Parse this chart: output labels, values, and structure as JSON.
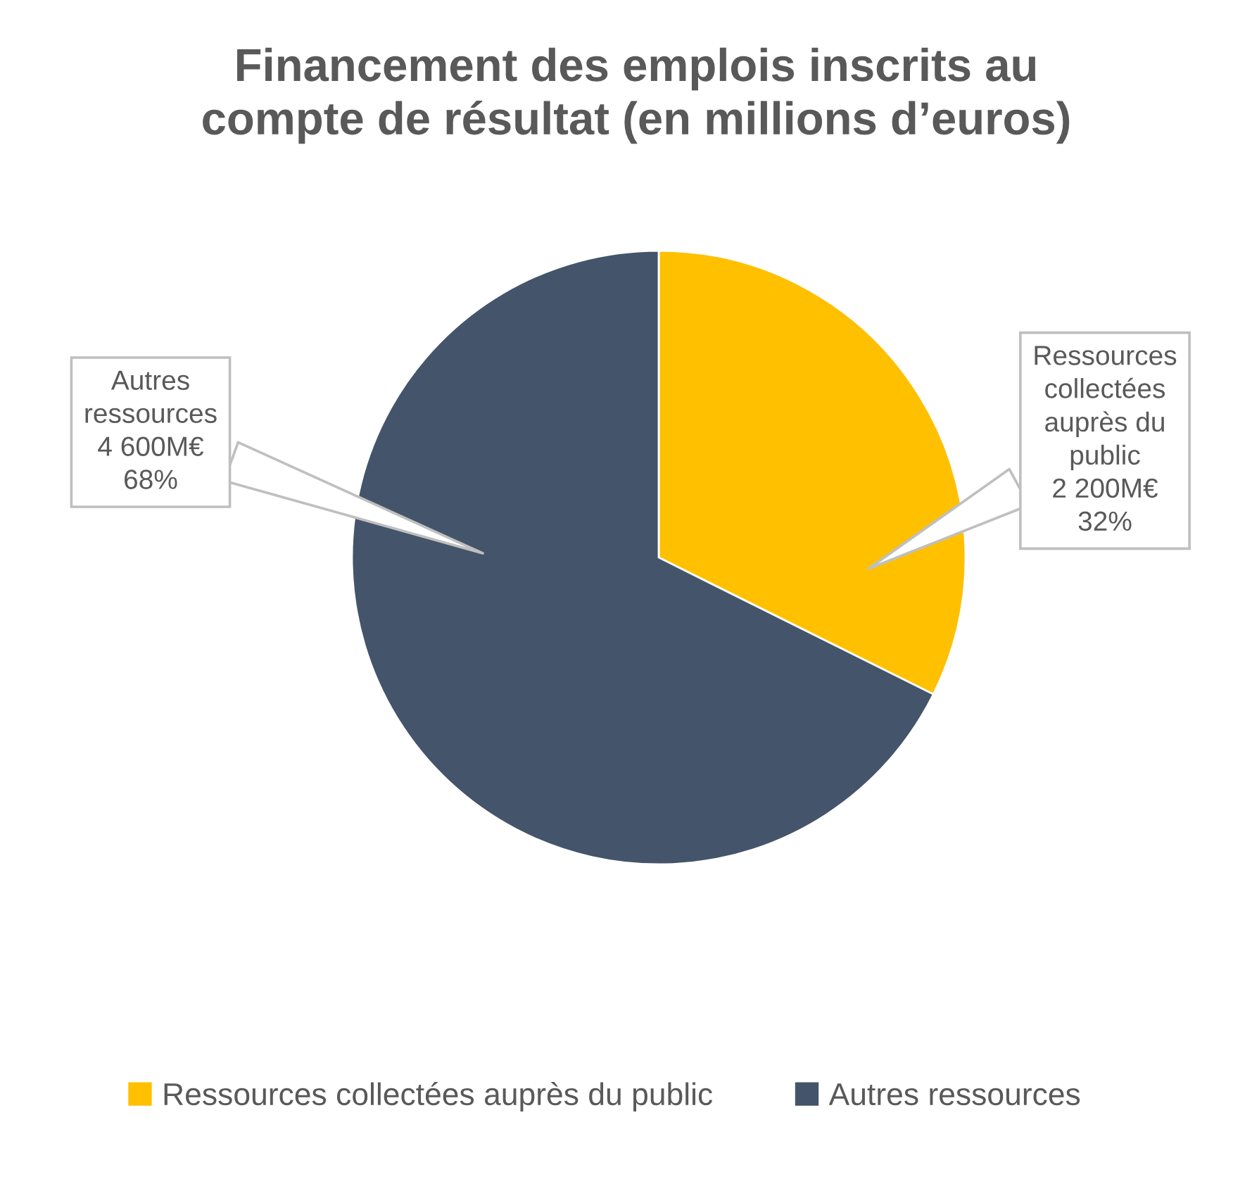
{
  "chart_data": {
    "type": "pie",
    "title": "Financement des emplois inscrits au compte de résultat (en millions d’euros)",
    "categories": [
      "Ressources collectées auprès du public",
      "Autres ressources"
    ],
    "values": [
      2200,
      4600
    ],
    "colors": [
      "#ffc000",
      "#44546a"
    ],
    "value_labels": [
      "2 200M€",
      "4 600M€"
    ],
    "annotations": [
      "32%",
      "68%"
    ],
    "legend": "bottom"
  }
}
